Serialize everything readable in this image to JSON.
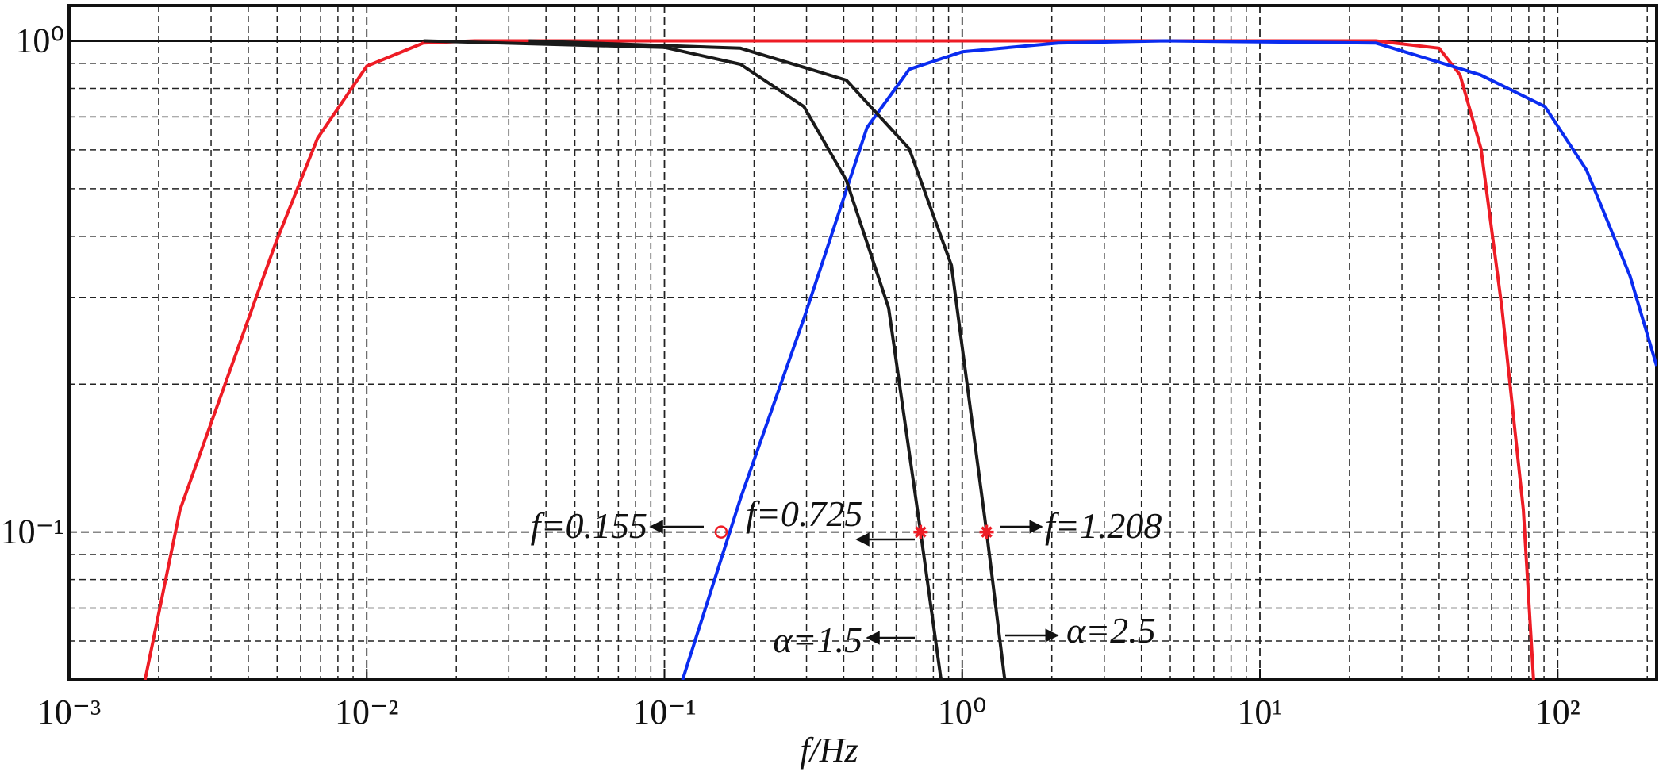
{
  "chart_data": {
    "type": "line",
    "xlabel": "f/Hz",
    "log_x": true,
    "log_y": true,
    "grid": true,
    "minor_grid": true,
    "xlim": [
      0.001,
      215
    ],
    "ylim": [
      0.05,
      1.18
    ],
    "xticks": [
      {
        "value": 0.001,
        "label": "10⁻³"
      },
      {
        "value": 0.01,
        "label": "10⁻²"
      },
      {
        "value": 0.1,
        "label": "10⁻¹"
      },
      {
        "value": 1,
        "label": "10⁰"
      },
      {
        "value": 10,
        "label": "10¹"
      },
      {
        "value": 100,
        "label": "10²"
      }
    ],
    "yticks": [
      {
        "value": 0.1,
        "label": "10⁻¹"
      },
      {
        "value": 1,
        "label": "10⁰"
      }
    ],
    "series": [
      {
        "color": "#ee1c25",
        "x": [
          0.0018,
          0.00236,
          0.00493,
          0.00684,
          0.01,
          0.0155,
          0.023,
          24.5,
          40,
          47,
          55.3,
          65,
          76.7,
          83
        ],
        "values": [
          0.05,
          0.111,
          0.386,
          0.634,
          0.888,
          0.99,
          1,
          1,
          0.966,
          0.853,
          0.603,
          0.286,
          0.111,
          0.05
        ]
      },
      {
        "color": "#0a2cf0",
        "x": [
          0.115,
          0.18,
          0.294,
          0.479,
          0.664,
          1,
          2.1,
          4.8,
          24.5,
          55,
          90.6,
          125,
          175,
          215
        ],
        "values": [
          0.05,
          0.117,
          0.272,
          0.666,
          0.875,
          0.95,
          0.99,
          1,
          0.99,
          0.853,
          0.735,
          0.546,
          0.332,
          0.218
        ]
      },
      {
        "color": "#1a1a1a",
        "x": [
          0.0155,
          0.1,
          0.18,
          0.294,
          0.408,
          0.566,
          0.725,
          0.849
        ],
        "values": [
          1,
          0.97,
          0.896,
          0.735,
          0.52,
          0.286,
          0.1,
          0.05
        ]
      },
      {
        "color": "#1a1a1a",
        "x": [
          0.035,
          0.18,
          0.408,
          0.664,
          0.92,
          1.208,
          1.39
        ],
        "values": [
          1,
          0.966,
          0.832,
          0.603,
          0.349,
          0.1,
          0.05
        ]
      },
      {
        "color": "#ee1c25",
        "mode": "markers",
        "markers": [
          "circle",
          "star",
          "star"
        ],
        "x": [
          0.155,
          0.725,
          1.208
        ],
        "values": [
          0.1,
          0.1,
          0.1
        ]
      }
    ],
    "annotations": [
      "f=0.155",
      "f=0.725",
      "f=1.208",
      "α=1.5",
      "α=2.5"
    ]
  }
}
